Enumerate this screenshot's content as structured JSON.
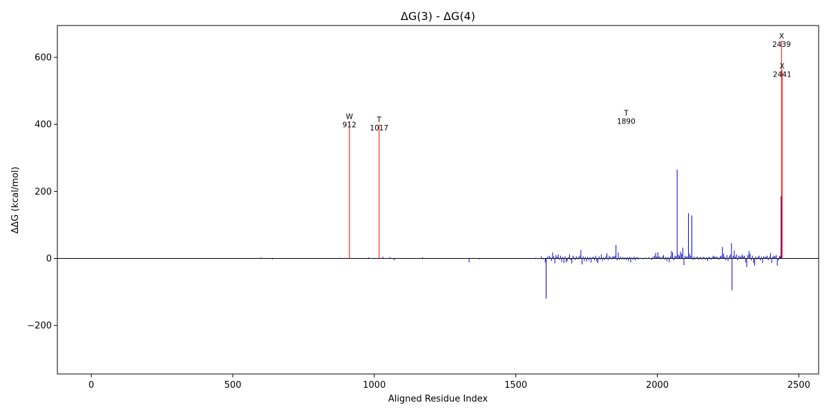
{
  "chart_data": {
    "type": "bar",
    "title": "ΔG(3) - ΔG(4)",
    "xlabel": "Aligned Residue Index",
    "ylabel": "ΔΔG (kcal/mol)",
    "xlim": [
      -120,
      2570
    ],
    "ylim": [
      -345,
      695
    ],
    "x_ticks": [
      0,
      500,
      1000,
      1500,
      2000,
      2500
    ],
    "y_ticks": [
      -200,
      0,
      200,
      400,
      600
    ],
    "grid": false,
    "baseline": 0,
    "colors": {
      "normal": "#0000cc",
      "highlight": "#ff0000",
      "baseline": "#000000"
    },
    "highlight_bars": [
      {
        "x": 912,
        "value": 410,
        "residue": "W",
        "index_label": "912"
      },
      {
        "x": 1017,
        "value": 400,
        "residue": "T",
        "index_label": "1017"
      },
      {
        "x": 1890,
        "value": null,
        "residue": "T",
        "index_label": "1890"
      },
      {
        "x": 2439,
        "value": 650,
        "residue": "X",
        "index_label": "2439"
      },
      {
        "x": 2441,
        "value": 560,
        "residue": "X",
        "index_label": "2441"
      }
    ],
    "bars": [
      [
        600,
        3
      ],
      [
        640,
        -3
      ],
      [
        880,
        2
      ],
      [
        980,
        3
      ],
      [
        1000,
        -2
      ],
      [
        1030,
        5
      ],
      [
        1055,
        4
      ],
      [
        1070,
        -6
      ],
      [
        1170,
        3
      ],
      [
        1335,
        -12
      ],
      [
        1370,
        -3
      ],
      [
        1570,
        2
      ],
      [
        1590,
        6
      ],
      [
        1596,
        -3
      ],
      [
        1604,
        -12
      ],
      [
        1607,
        -120
      ],
      [
        1612,
        5
      ],
      [
        1618,
        8
      ],
      [
        1622,
        4
      ],
      [
        1626,
        -8
      ],
      [
        1630,
        18
      ],
      [
        1634,
        6
      ],
      [
        1638,
        -15
      ],
      [
        1642,
        10
      ],
      [
        1646,
        5
      ],
      [
        1650,
        12
      ],
      [
        1654,
        -4
      ],
      [
        1658,
        8
      ],
      [
        1662,
        -10
      ],
      [
        1666,
        5
      ],
      [
        1670,
        -14
      ],
      [
        1674,
        6
      ],
      [
        1678,
        -12
      ],
      [
        1682,
        -8
      ],
      [
        1686,
        4
      ],
      [
        1690,
        12
      ],
      [
        1694,
        -6
      ],
      [
        1698,
        -15
      ],
      [
        1702,
        8
      ],
      [
        1706,
        3
      ],
      [
        1710,
        -5
      ],
      [
        1714,
        6
      ],
      [
        1718,
        -3
      ],
      [
        1722,
        4
      ],
      [
        1726,
        8
      ],
      [
        1730,
        25
      ],
      [
        1734,
        -18
      ],
      [
        1738,
        6
      ],
      [
        1742,
        -8
      ],
      [
        1746,
        4
      ],
      [
        1750,
        -10
      ],
      [
        1754,
        5
      ],
      [
        1758,
        -6
      ],
      [
        1762,
        4
      ],
      [
        1766,
        -12
      ],
      [
        1770,
        3
      ],
      [
        1774,
        5
      ],
      [
        1778,
        -6
      ],
      [
        1782,
        8
      ],
      [
        1786,
        -10
      ],
      [
        1790,
        -14
      ],
      [
        1794,
        6
      ],
      [
        1798,
        -4
      ],
      [
        1802,
        12
      ],
      [
        1806,
        -8
      ],
      [
        1810,
        4
      ],
      [
        1814,
        -5
      ],
      [
        1818,
        6
      ],
      [
        1822,
        15
      ],
      [
        1826,
        -6
      ],
      [
        1830,
        8
      ],
      [
        1834,
        4
      ],
      [
        1838,
        -3
      ],
      [
        1842,
        6
      ],
      [
        1846,
        5
      ],
      [
        1850,
        8
      ],
      [
        1854,
        40
      ],
      [
        1858,
        -6
      ],
      [
        1862,
        18
      ],
      [
        1866,
        -4
      ],
      [
        1870,
        5
      ],
      [
        1874,
        -3
      ],
      [
        1878,
        4
      ],
      [
        1882,
        -4
      ],
      [
        1886,
        3
      ],
      [
        1890,
        -5
      ],
      [
        1894,
        4
      ],
      [
        1898,
        -8
      ],
      [
        1902,
        5
      ],
      [
        1906,
        -12
      ],
      [
        1910,
        3
      ],
      [
        1914,
        -4
      ],
      [
        1918,
        5
      ],
      [
        1922,
        -6
      ],
      [
        1926,
        3
      ],
      [
        1930,
        4
      ],
      [
        1934,
        -3
      ],
      [
        1940,
        2
      ],
      [
        1950,
        -3
      ],
      [
        1960,
        3
      ],
      [
        1970,
        4
      ],
      [
        1980,
        -5
      ],
      [
        1985,
        5
      ],
      [
        1990,
        8
      ],
      [
        1994,
        16
      ],
      [
        1998,
        5
      ],
      [
        2002,
        18
      ],
      [
        2006,
        6
      ],
      [
        2010,
        4
      ],
      [
        2014,
        -3
      ],
      [
        2018,
        6
      ],
      [
        2022,
        10
      ],
      [
        2026,
        -4
      ],
      [
        2030,
        5
      ],
      [
        2034,
        -8
      ],
      [
        2038,
        4
      ],
      [
        2042,
        -12
      ],
      [
        2046,
        6
      ],
      [
        2050,
        22
      ],
      [
        2054,
        18
      ],
      [
        2058,
        -6
      ],
      [
        2062,
        8
      ],
      [
        2066,
        6
      ],
      [
        2070,
        265
      ],
      [
        2074,
        12
      ],
      [
        2078,
        8
      ],
      [
        2082,
        20
      ],
      [
        2086,
        14
      ],
      [
        2090,
        32
      ],
      [
        2094,
        -20
      ],
      [
        2098,
        8
      ],
      [
        2102,
        5
      ],
      [
        2106,
        6
      ],
      [
        2110,
        135
      ],
      [
        2114,
        14
      ],
      [
        2118,
        8
      ],
      [
        2122,
        128
      ],
      [
        2126,
        -5
      ],
      [
        2130,
        6
      ],
      [
        2134,
        -3
      ],
      [
        2138,
        4
      ],
      [
        2142,
        5
      ],
      [
        2146,
        -4
      ],
      [
        2150,
        3
      ],
      [
        2154,
        4
      ],
      [
        2158,
        -3
      ],
      [
        2162,
        5
      ],
      [
        2166,
        3
      ],
      [
        2170,
        -4
      ],
      [
        2174,
        4
      ],
      [
        2178,
        -8
      ],
      [
        2182,
        5
      ],
      [
        2186,
        3
      ],
      [
        2190,
        -4
      ],
      [
        2194,
        4
      ],
      [
        2198,
        8
      ],
      [
        2202,
        6
      ],
      [
        2206,
        4
      ],
      [
        2210,
        5
      ],
      [
        2214,
        3
      ],
      [
        2218,
        -4
      ],
      [
        2222,
        6
      ],
      [
        2226,
        8
      ],
      [
        2230,
        34
      ],
      [
        2234,
        14
      ],
      [
        2238,
        5
      ],
      [
        2242,
        -6
      ],
      [
        2246,
        10
      ],
      [
        2250,
        -8
      ],
      [
        2254,
        6
      ],
      [
        2258,
        12
      ],
      [
        2262,
        45
      ],
      [
        2264,
        -95
      ],
      [
        2268,
        8
      ],
      [
        2272,
        24
      ],
      [
        2276,
        5
      ],
      [
        2280,
        12
      ],
      [
        2284,
        -6
      ],
      [
        2288,
        8
      ],
      [
        2292,
        5
      ],
      [
        2296,
        6
      ],
      [
        2300,
        12
      ],
      [
        2304,
        6
      ],
      [
        2308,
        8
      ],
      [
        2312,
        -12
      ],
      [
        2316,
        -26
      ],
      [
        2320,
        10
      ],
      [
        2324,
        22
      ],
      [
        2328,
        14
      ],
      [
        2332,
        -6
      ],
      [
        2336,
        8
      ],
      [
        2340,
        -14
      ],
      [
        2344,
        -22
      ],
      [
        2348,
        6
      ],
      [
        2352,
        -4
      ],
      [
        2356,
        5
      ],
      [
        2360,
        8
      ],
      [
        2364,
        -6
      ],
      [
        2368,
        5
      ],
      [
        2372,
        -14
      ],
      [
        2376,
        6
      ],
      [
        2380,
        4
      ],
      [
        2384,
        5
      ],
      [
        2388,
        8
      ],
      [
        2392,
        -6
      ],
      [
        2396,
        5
      ],
      [
        2400,
        16
      ],
      [
        2404,
        -14
      ],
      [
        2408,
        5
      ],
      [
        2412,
        8
      ],
      [
        2416,
        6
      ],
      [
        2420,
        10
      ],
      [
        2424,
        -22
      ],
      [
        2428,
        -6
      ],
      [
        2432,
        8
      ],
      [
        2435,
        5
      ],
      [
        2437,
        185
      ]
    ]
  }
}
